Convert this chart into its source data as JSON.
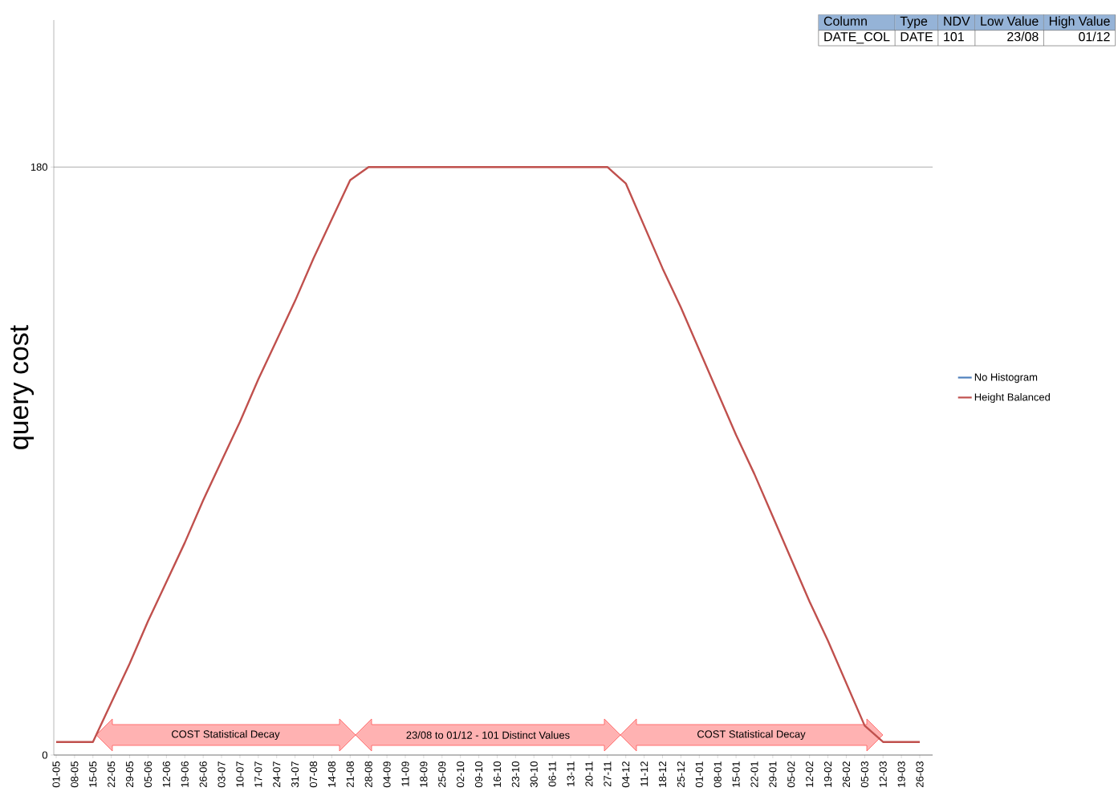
{
  "chart_data": {
    "type": "line",
    "ylabel": "query cost",
    "categories": [
      "01-05",
      "08-05",
      "15-05",
      "22-05",
      "29-05",
      "05-06",
      "12-06",
      "19-06",
      "26-06",
      "03-07",
      "10-07",
      "17-07",
      "24-07",
      "31-07",
      "07-08",
      "14-08",
      "21-08",
      "28-08",
      "04-09",
      "11-09",
      "18-09",
      "25-09",
      "02-10",
      "09-10",
      "16-10",
      "23-10",
      "30-10",
      "06-11",
      "13-11",
      "20-11",
      "27-11",
      "04-12",
      "11-12",
      "18-12",
      "25-12",
      "01-01",
      "08-01",
      "15-01",
      "22-01",
      "29-01",
      "05-02",
      "12-02",
      "19-02",
      "26-02",
      "05-03",
      "12-03",
      "19-03",
      "26-03"
    ],
    "series": [
      {
        "name": "No Histogram",
        "color": "#4f81bd",
        "values": [
          null,
          null,
          null,
          null,
          null,
          null,
          null,
          null,
          null,
          null,
          null,
          null,
          null,
          null,
          null,
          null,
          null,
          null,
          null,
          null,
          null,
          null,
          null,
          null,
          null,
          null,
          null,
          null,
          null,
          null,
          null,
          null,
          null,
          null,
          null,
          null,
          null,
          null,
          null,
          null,
          null,
          null,
          null,
          null,
          null,
          null,
          null,
          null
        ]
      },
      {
        "name": "Height Balanced",
        "color": "#c0504d",
        "values": [
          4,
          4,
          4,
          16,
          28,
          41,
          53,
          65,
          78,
          90,
          102,
          115,
          127,
          139,
          152,
          164,
          176,
          180,
          180,
          180,
          180,
          180,
          180,
          180,
          180,
          180,
          180,
          180,
          180,
          180,
          180,
          175,
          162,
          149,
          137,
          124,
          111,
          98,
          86,
          73,
          60,
          47,
          35,
          22,
          9,
          4,
          4,
          4
        ]
      }
    ],
    "ylim": [
      0,
      225
    ],
    "yticks": [
      0,
      180
    ],
    "grid": "y",
    "legend": "right",
    "annotations": [
      "COST Statistical Decay",
      "23/08 to 01/12 - 101 Distinct Values",
      "COST Statistical Decay",
      "Column",
      "Type",
      "NDV",
      "Low Value",
      "High Value",
      "DATE_COL",
      "DATE",
      "101",
      "23/08",
      "01/12"
    ]
  }
}
